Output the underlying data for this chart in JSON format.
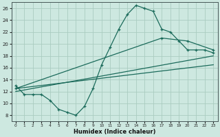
{
  "xlabel": "Humidex (Indice chaleur)",
  "bg_color": "#cde8e0",
  "grid_color": "#aaccc0",
  "line_color": "#1a6a5a",
  "xlim": [
    -0.5,
    23.5
  ],
  "ylim": [
    7,
    27
  ],
  "yticks": [
    8,
    10,
    12,
    14,
    16,
    18,
    20,
    22,
    24,
    26
  ],
  "xticks": [
    0,
    1,
    2,
    3,
    4,
    5,
    6,
    7,
    8,
    9,
    10,
    11,
    12,
    13,
    14,
    15,
    16,
    17,
    18,
    19,
    20,
    21,
    22,
    23
  ],
  "curve_x": [
    0,
    1,
    2,
    3,
    4,
    5,
    6,
    7,
    8,
    9,
    10,
    11,
    12,
    13,
    14,
    15,
    16,
    17,
    18,
    19,
    20,
    21,
    22,
    23
  ],
  "curve_y": [
    13.0,
    11.5,
    11.5,
    11.5,
    10.5,
    9.0,
    8.5,
    8.0,
    9.5,
    12.5,
    16.5,
    19.5,
    22.5,
    25.0,
    26.5,
    26.0,
    25.5,
    22.5,
    22.0,
    20.5,
    19.0,
    19.0,
    19.0,
    18.5
  ],
  "line2_x": [
    0,
    17,
    20,
    23
  ],
  "line2_y": [
    12.5,
    21.0,
    20.5,
    19.0
  ],
  "line3_x": [
    0,
    23
  ],
  "line3_y": [
    12.0,
    18.0
  ],
  "line4_x": [
    0,
    23
  ],
  "line4_y": [
    12.5,
    16.5
  ]
}
